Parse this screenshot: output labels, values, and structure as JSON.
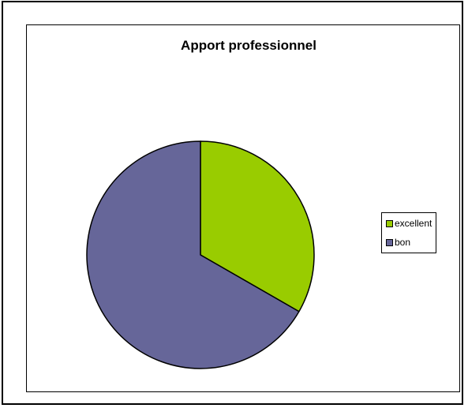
{
  "chart_data": {
    "type": "pie",
    "title": "Apport professionnel",
    "categories": [
      "excellent",
      "bon"
    ],
    "values": [
      33.3,
      66.7
    ],
    "colors": [
      "#99cc00",
      "#666699"
    ],
    "start_angle_deg": 0,
    "direction": "clockwise",
    "legend_position": "right"
  }
}
